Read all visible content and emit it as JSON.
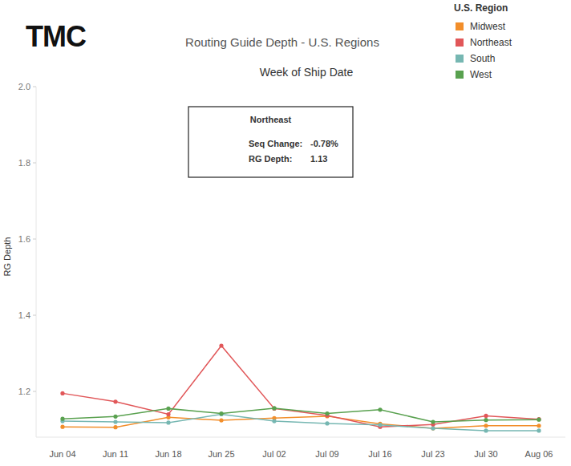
{
  "chart_data": {
    "type": "line",
    "logo": "TMC",
    "title": "Routing Guide Depth - U.S. Regions",
    "subtitle": "Week of Ship Date",
    "y_label": "RG Depth",
    "legend_title": "U.S. Region",
    "legend": "upper right",
    "grid": false,
    "marker": "circle",
    "categories": [
      "Jun 04",
      "Jun 11",
      "Jun 18",
      "Jun 25",
      "Jul 02",
      "Jul 09",
      "Jul 16",
      "Jul 23",
      "Jul 30",
      "Aug 06"
    ],
    "series": [
      {
        "name": "Midwest",
        "color": "#f28e2b",
        "values": [
          1.107,
          1.106,
          1.132,
          1.124,
          1.13,
          1.135,
          1.115,
          1.103,
          1.11,
          1.11
        ]
      },
      {
        "name": "Northeast",
        "color": "#e15759",
        "values": [
          1.195,
          1.173,
          1.14,
          1.32,
          1.155,
          1.137,
          1.107,
          1.113,
          1.136,
          1.127
        ]
      },
      {
        "name": "South",
        "color": "#76b7b2",
        "values": [
          1.122,
          1.12,
          1.118,
          1.14,
          1.122,
          1.116,
          1.112,
          1.103,
          1.097,
          1.097
        ]
      },
      {
        "name": "West",
        "color": "#59a14f",
        "values": [
          1.128,
          1.134,
          1.155,
          1.142,
          1.156,
          1.142,
          1.152,
          1.12,
          1.125,
          1.126
        ]
      }
    ],
    "ylim": [
      1.08,
      2.0
    ],
    "yticks": [
      1.2,
      1.4,
      1.6,
      1.8,
      {
        "value": 2.0,
        "label": "2.0"
      }
    ],
    "annotation": {
      "title": "Northeast",
      "rows": [
        {
          "label": "Seq Change:",
          "value": "-0.78%"
        },
        {
          "label": "RG Depth:",
          "value": "1.13"
        }
      ]
    }
  }
}
